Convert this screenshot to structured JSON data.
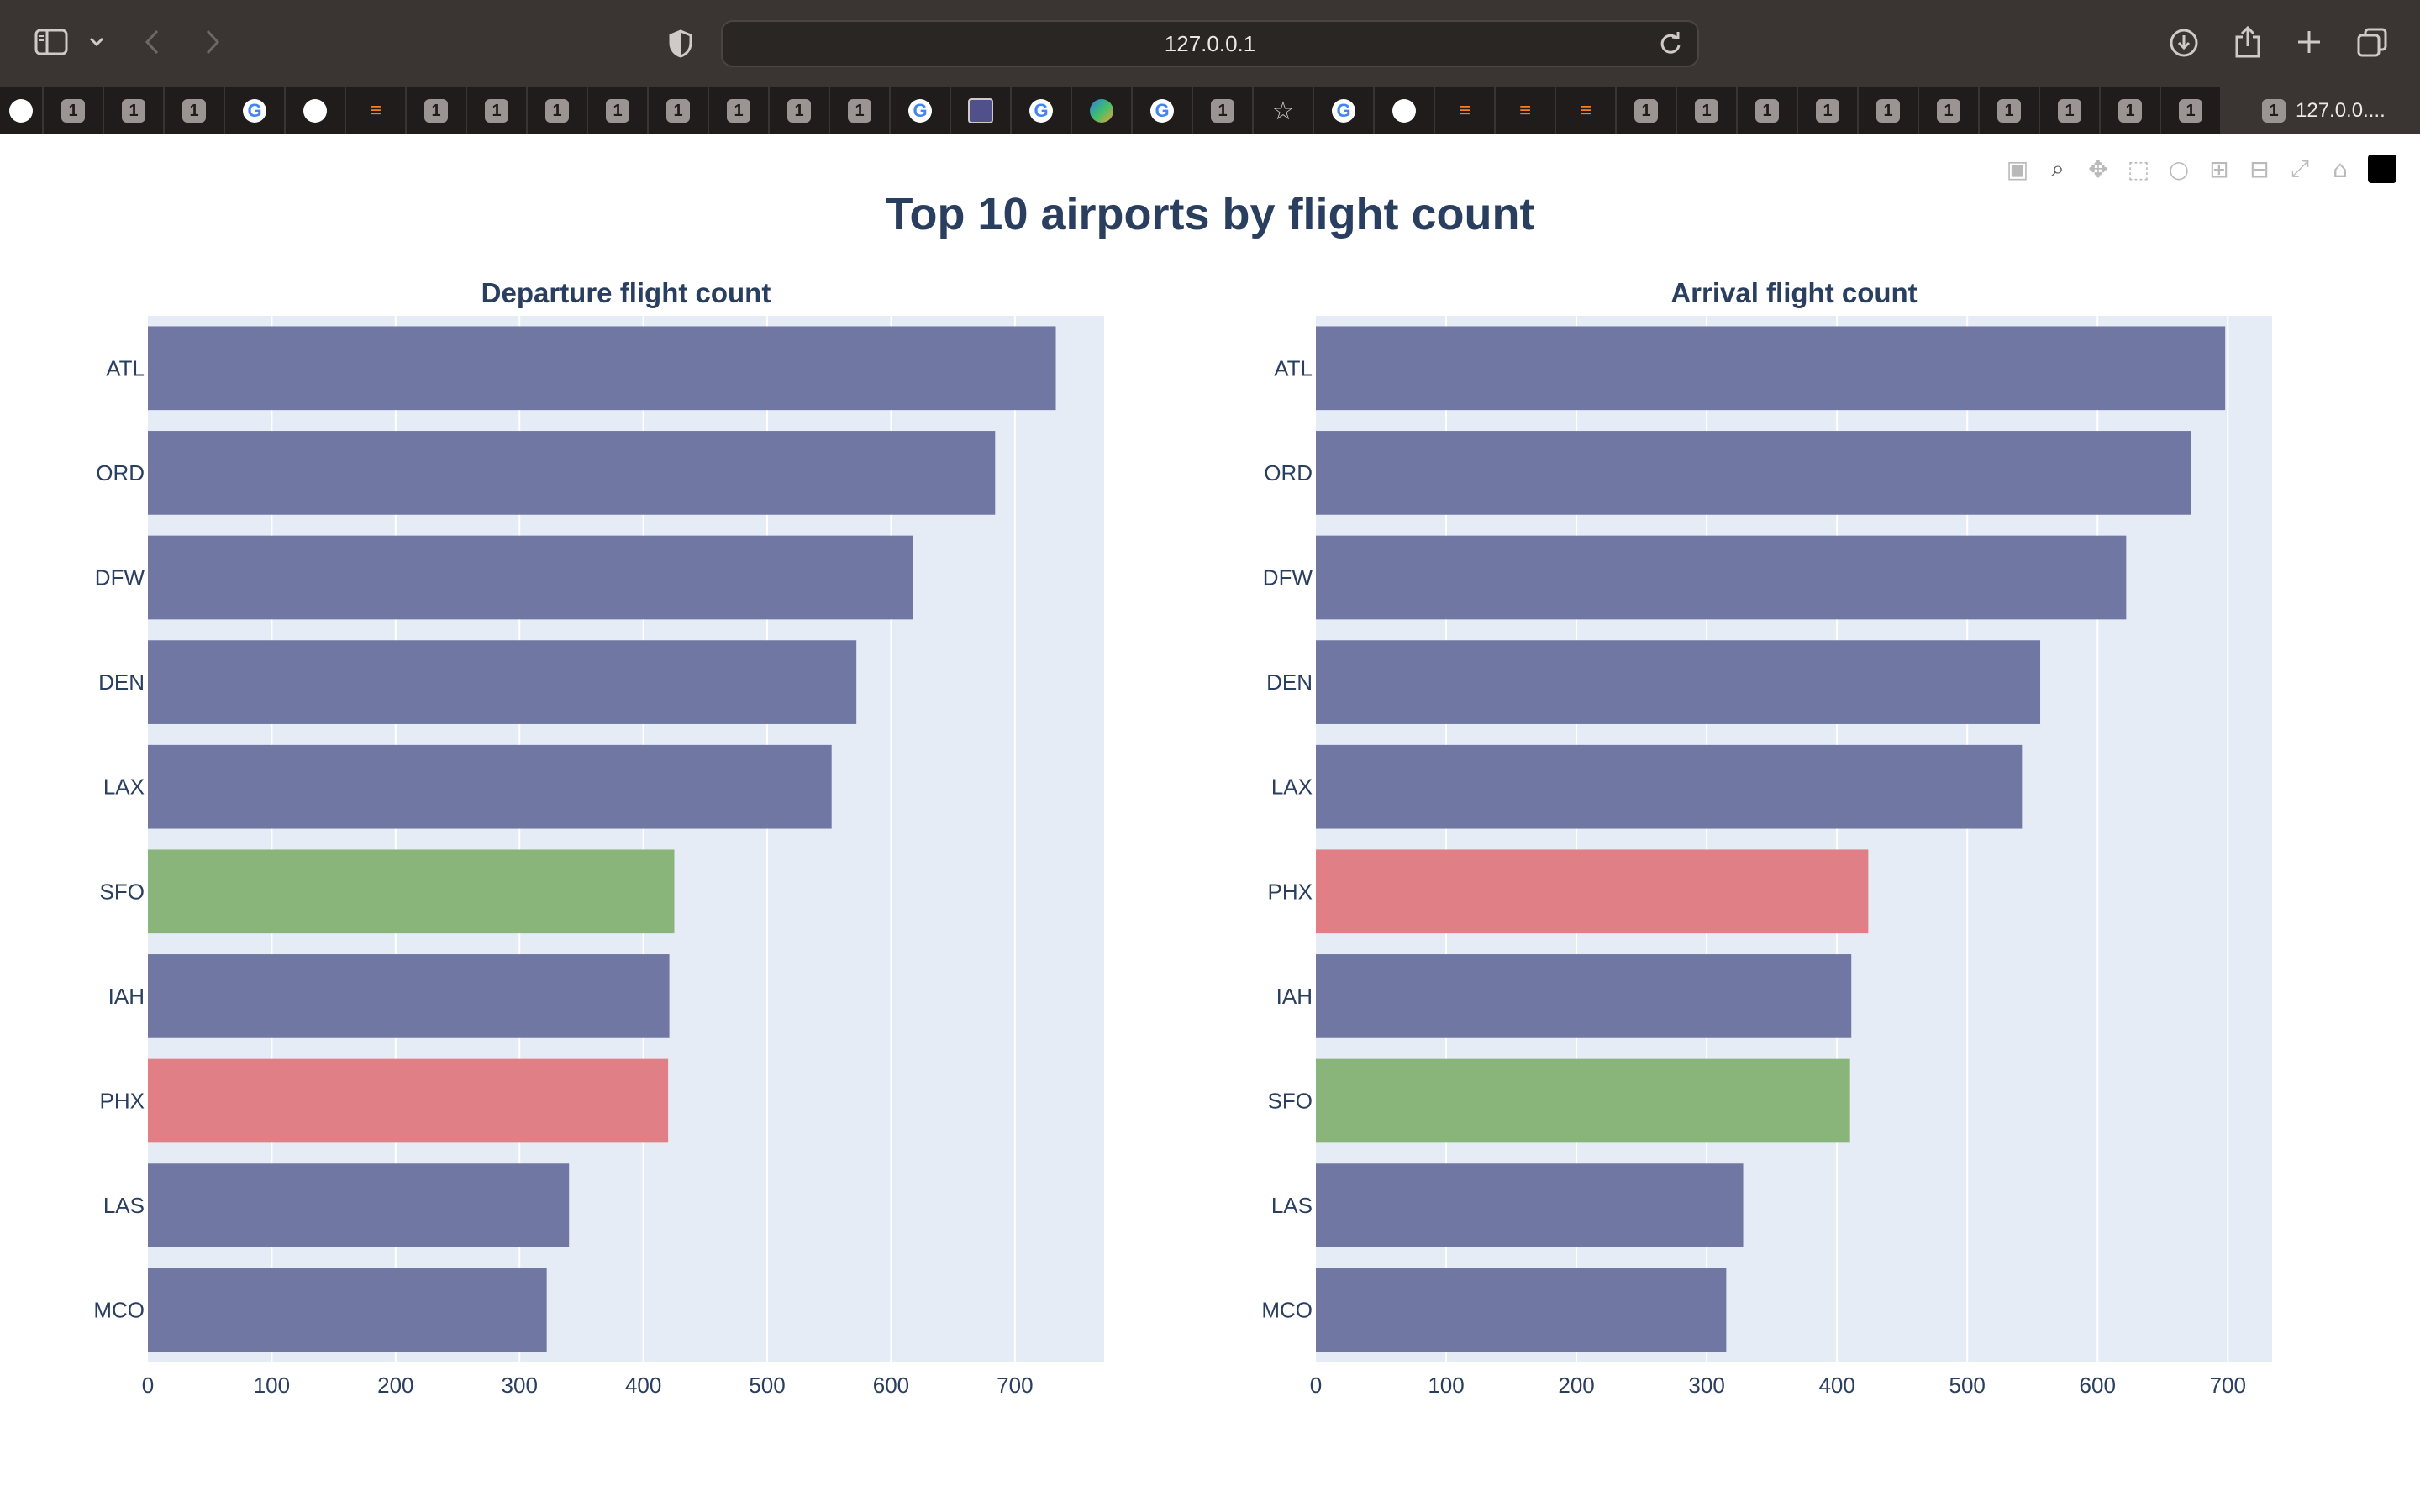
{
  "browser": {
    "url": "127.0.0.1",
    "active_tab_title": "127.0.0...."
  },
  "colors": {
    "bar_default": "#7077a2",
    "bar_sfo": "#8ab57a",
    "bar_phx": "#e07f85",
    "plot_bg": "#e5ecf6",
    "grid": "#ffffff",
    "title": "#2a3f5f",
    "tick_text": "#2a3f5f",
    "chrome_bg": "#3a3533",
    "tabstrip_bg": "#1f1c1b"
  },
  "tabs": [
    {
      "icon": "chart-icon"
    },
    {
      "icon": "badge-1",
      "label": "1"
    },
    {
      "icon": "badge-1",
      "label": "1"
    },
    {
      "icon": "badge-1",
      "label": "1"
    },
    {
      "icon": "google-icon",
      "label": "G"
    },
    {
      "icon": "chart-icon"
    },
    {
      "icon": "stackoverflow-icon"
    },
    {
      "icon": "badge-1",
      "label": "1"
    },
    {
      "icon": "badge-1",
      "label": "1"
    },
    {
      "icon": "badge-1",
      "label": "1"
    },
    {
      "icon": "badge-1",
      "label": "1"
    },
    {
      "icon": "badge-1",
      "label": "1"
    },
    {
      "icon": "badge-1",
      "label": "1"
    },
    {
      "icon": "badge-1",
      "label": "1"
    },
    {
      "icon": "badge-1",
      "label": "1"
    },
    {
      "icon": "google-icon",
      "label": "G"
    },
    {
      "icon": "plot-icon"
    },
    {
      "icon": "google-icon",
      "label": "G"
    },
    {
      "icon": "globe-icon"
    },
    {
      "icon": "google-icon",
      "label": "G"
    },
    {
      "icon": "badge-1",
      "label": "1"
    },
    {
      "icon": "star-icon"
    },
    {
      "icon": "google-icon",
      "label": "G"
    },
    {
      "icon": "chart-icon"
    },
    {
      "icon": "stackoverflow-icon"
    },
    {
      "icon": "stackoverflow-icon"
    },
    {
      "icon": "stackoverflow-icon"
    },
    {
      "icon": "badge-1",
      "label": "1"
    },
    {
      "icon": "badge-1",
      "label": "1"
    },
    {
      "icon": "badge-1",
      "label": "1"
    },
    {
      "icon": "badge-1",
      "label": "1"
    },
    {
      "icon": "badge-1",
      "label": "1"
    },
    {
      "icon": "badge-1",
      "label": "1"
    },
    {
      "icon": "badge-1",
      "label": "1"
    },
    {
      "icon": "badge-1",
      "label": "1"
    },
    {
      "icon": "badge-1",
      "label": "1"
    },
    {
      "icon": "badge-1",
      "label": "1"
    }
  ],
  "modebar": [
    "camera-icon",
    "zoom-icon",
    "pan-icon",
    "box-select-icon",
    "lasso-icon",
    "zoom-in-icon",
    "zoom-out-icon",
    "autoscale-icon",
    "home-icon",
    "plotly-logo"
  ],
  "chart_data": [
    {
      "type": "bar",
      "orientation": "horizontal",
      "title": "Top 10 airports by flight count",
      "subplot_title": "Departure flight count",
      "categories": [
        "ATL",
        "ORD",
        "DFW",
        "DEN",
        "LAX",
        "SFO",
        "IAH",
        "PHX",
        "LAS",
        "MCO"
      ],
      "values": [
        733,
        684,
        618,
        572,
        552,
        425,
        421,
        420,
        340,
        322
      ],
      "highlight": {
        "SFO": "#8ab57a",
        "PHX": "#e07f85"
      },
      "xlim": [
        0,
        772
      ],
      "xticks": [
        0,
        100,
        200,
        300,
        400,
        500,
        600,
        700
      ],
      "grid": true
    },
    {
      "type": "bar",
      "orientation": "horizontal",
      "subplot_title": "Arrival flight count",
      "categories": [
        "ATL",
        "ORD",
        "DFW",
        "DEN",
        "LAX",
        "PHX",
        "IAH",
        "SFO",
        "LAS",
        "MCO"
      ],
      "values": [
        698,
        672,
        622,
        556,
        542,
        424,
        411,
        410,
        328,
        315
      ],
      "highlight": {
        "SFO": "#8ab57a",
        "PHX": "#e07f85"
      },
      "xlim": [
        0,
        734
      ],
      "xticks": [
        0,
        100,
        200,
        300,
        400,
        500,
        600,
        700
      ],
      "grid": true
    }
  ]
}
